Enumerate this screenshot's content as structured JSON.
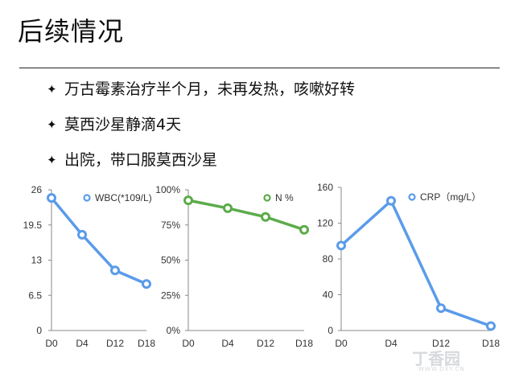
{
  "slide": {
    "title": "后续情况",
    "bullets": [
      "万古霉素治疗半个月，未再发热，咳嗽好转",
      "莫西沙星静滴4天",
      "出院，带口服莫西沙星"
    ],
    "bullet_icon": "four-point-star-icon"
  },
  "watermark": {
    "text": "丁香园",
    "sub": "WWW.DXY.CN"
  },
  "chart_data": [
    {
      "type": "line",
      "categories": [
        "D0",
        "D4",
        "D12",
        "D18"
      ],
      "yticks": [
        "0",
        "6.5",
        "13",
        "19.5",
        "26"
      ],
      "ylim": [
        0,
        26
      ],
      "legend_position": "top-right",
      "grid": false,
      "series": [
        {
          "name": "WBC(*109/L)",
          "values": [
            24.5,
            17.7,
            11.1,
            8.6
          ],
          "color": "#5b9bea"
        }
      ]
    },
    {
      "type": "line",
      "categories": [
        "D0",
        "D4",
        "D12",
        "D18"
      ],
      "yticks": [
        "0%",
        "25%",
        "50%",
        "75%",
        "100%"
      ],
      "ylim": [
        0,
        100
      ],
      "legend_position": "top-right",
      "grid": false,
      "series": [
        {
          "name": "N %",
          "values": [
            92.5,
            86.9,
            80.7,
            71.6
          ],
          "color": "#5cab4a"
        }
      ]
    },
    {
      "type": "line",
      "categories": [
        "D0",
        "D4",
        "D12",
        "D18"
      ],
      "yticks": [
        "0",
        "40",
        "80",
        "120",
        "160"
      ],
      "ylim": [
        0,
        160
      ],
      "legend_position": "top-right",
      "grid": false,
      "series": [
        {
          "name": "CRP（mg/L）",
          "values": [
            95,
            145,
            25,
            5
          ],
          "color": "#5b9bea"
        }
      ]
    }
  ]
}
